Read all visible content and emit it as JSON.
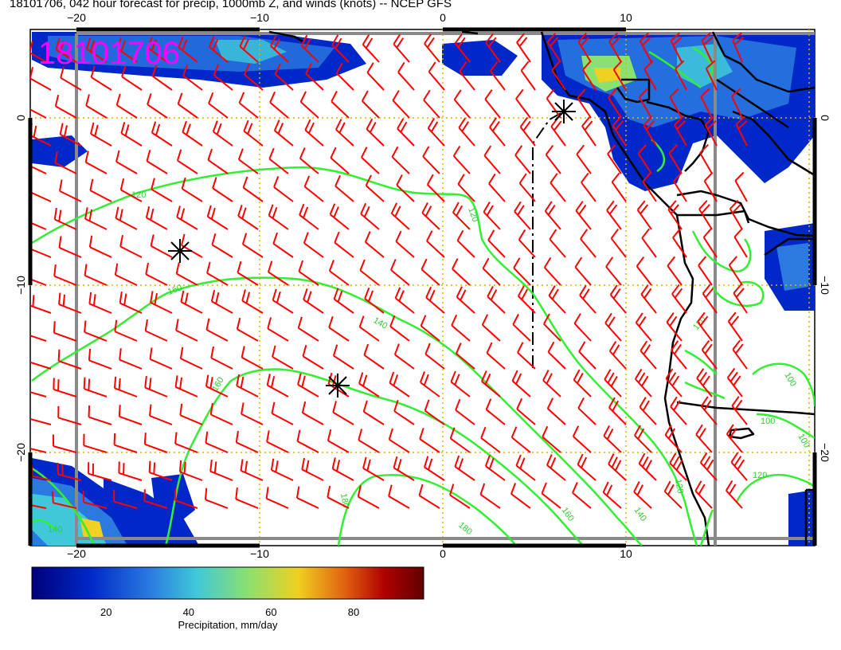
{
  "title": "18101706, 042 hour forecast for precip, 1000mb Z, and winds (knots) -- NCEP GFS",
  "stamp": "18101706",
  "axes": {
    "x_ticks": [
      "−20",
      "−10",
      "0",
      "10"
    ],
    "y_ticks": [
      "0",
      "−10",
      "−20"
    ]
  },
  "contours": {
    "color": "#33ee33",
    "labels": [
      "120",
      "120",
      "140",
      "160",
      "160",
      "180",
      "180",
      "160",
      "140",
      "120",
      "120",
      "100",
      "100",
      "100",
      "120",
      "140"
    ]
  },
  "wind_barb_color": "#ff0000",
  "precip_colors": [
    "#00007a",
    "#0028c8",
    "#2a7ae0",
    "#40c8d8",
    "#8ae070",
    "#f0d020",
    "#e06010",
    "#b00000",
    "#600000"
  ],
  "colorbar": {
    "ticks": [
      "20",
      "40",
      "60",
      "80"
    ],
    "label": "Precipitation, mm/day",
    "range": [
      2,
      97
    ]
  }
}
